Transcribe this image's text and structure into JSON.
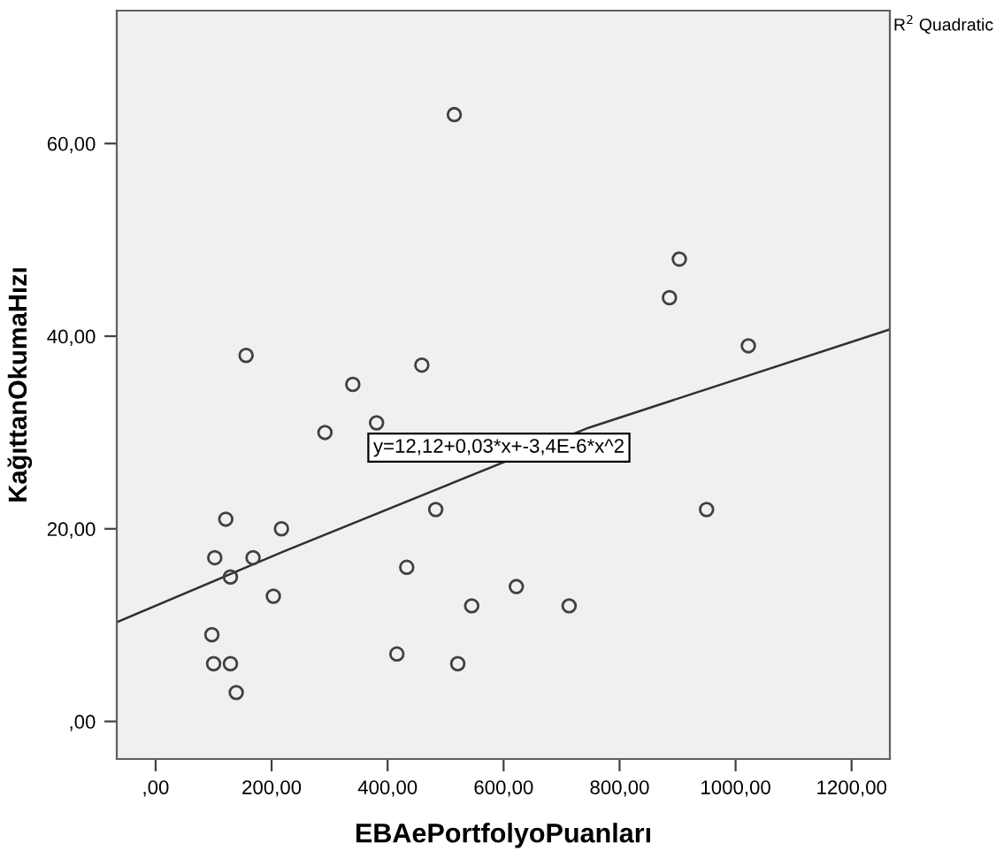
{
  "chart_data": {
    "type": "scatter",
    "xlabel": "EBAePortfolyoPuanları",
    "ylabel": "KağıttanOkumaHızı",
    "xlim": [
      -67,
      1266
    ],
    "ylim": [
      -3.9,
      73.8
    ],
    "xticks": [
      {
        "value": 0,
        "label": ",00"
      },
      {
        "value": 200,
        "label": "200,00"
      },
      {
        "value": 400,
        "label": "400,00"
      },
      {
        "value": 600,
        "label": "600,00"
      },
      {
        "value": 800,
        "label": "800,00"
      },
      {
        "value": 1000,
        "label": "1000,00"
      },
      {
        "value": 1200,
        "label": "1200,00"
      }
    ],
    "yticks": [
      {
        "value": 0,
        "label": ",00"
      },
      {
        "value": 20,
        "label": "20,00"
      },
      {
        "value": 40,
        "label": "40,00"
      },
      {
        "value": 60,
        "label": "60,00"
      }
    ],
    "grid": false,
    "series": [
      {
        "marker": "circle",
        "color": "#404040",
        "x": [
          515,
          156,
          459,
          340,
          292,
          381,
          903,
          886,
          1022,
          121,
          217,
          483,
          102,
          168,
          129,
          433,
          203,
          622,
          545,
          97,
          100,
          129,
          416,
          521,
          139,
          950,
          713
        ],
        "values": [
          63,
          38,
          37,
          35,
          30,
          31,
          48,
          44,
          39,
          21,
          20,
          22,
          17,
          17,
          15,
          16,
          13,
          14,
          12,
          9,
          6,
          6,
          7,
          6,
          3,
          22,
          12
        ]
      },
      {
        "type": "line",
        "color": "#303030",
        "x": [
          -67,
          219,
          747,
          1266
        ],
        "values": [
          10.3,
          17.6,
          30.5,
          40.7
        ]
      }
    ],
    "annotations": [
      "y=12,12+0,03*x+-3,4E-6*x^2",
      "R$^{2}$ Quadratic"
    ]
  }
}
